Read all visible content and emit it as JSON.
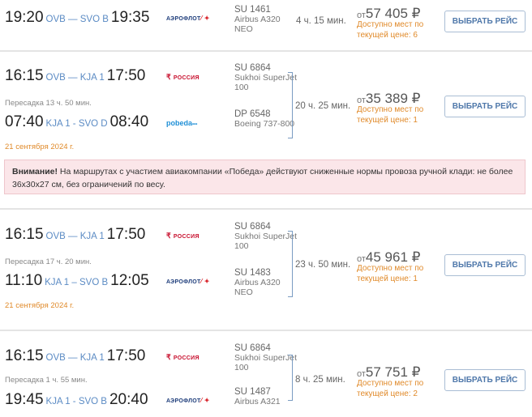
{
  "button_label": "ВЫБРАТЬ РЕЙС",
  "price_prefix": "от",
  "currency": "₽",
  "available_label_line1": "Доступно мест по",
  "available_label_line2": "текущей цене:",
  "colors": {
    "route": "#5b8bc4",
    "accent_orange": "#e08a2a",
    "button_text": "#4f78aa",
    "alert_bg": "#fbe6e9"
  },
  "alert": {
    "title": "Внимание!",
    "text": " На маршрутах с участием авиакомпании «Победа» действуют сниженные нормы провоза ручной клади: не более 36x30x27 см, без ограничений по весу."
  },
  "cards": [
    {
      "segments": [
        {
          "dep": "19:20",
          "route": "OVB — SVO B",
          "arr": "19:35",
          "airline": "aeroflot",
          "logo": "АЭРОФЛОТ",
          "code": "SU 1461",
          "aircraft": [
            "Airbus A320",
            "NEO"
          ]
        }
      ],
      "duration": "4 ч. 15 мин.",
      "price": "57 405",
      "seats": "6"
    },
    {
      "segments": [
        {
          "dep": "16:15",
          "route": "OVB — KJA 1",
          "arr": "17:50",
          "airline": "rossiya",
          "logo": "РОССИЯ",
          "code": "SU 6864",
          "aircraft": [
            "Sukhoi SuperJet",
            "100"
          ]
        },
        {
          "dep": "07:40",
          "route": "KJA 1 - SVO D",
          "arr": "08:40",
          "airline": "pobeda",
          "logo": "pobeda",
          "code": "DP 6548",
          "aircraft": [
            "Boeing 737-800"
          ]
        }
      ],
      "transfer": "Пересадка 13 ч. 50 мин.",
      "date": "21 сентября 2024 г.",
      "duration": "20 ч. 25 мин.",
      "price": "35 389",
      "seats": "1"
    },
    {
      "segments": [
        {
          "dep": "16:15",
          "route": "OVB — KJA 1",
          "arr": "17:50",
          "airline": "rossiya",
          "logo": "РОССИЯ",
          "code": "SU 6864",
          "aircraft": [
            "Sukhoi SuperJet",
            "100"
          ]
        },
        {
          "dep": "11:10",
          "route": "KJA 1 – SVO B",
          "arr": "12:05",
          "airline": "aeroflot",
          "logo": "АЭРОФЛОТ",
          "code": "SU 1483",
          "aircraft": [
            "Airbus A320",
            "NEO"
          ]
        }
      ],
      "transfer": "Пересадка 17 ч. 20 мин.",
      "date": "21 сентября 2024 г.",
      "duration": "23 ч. 50 мин.",
      "price": "45 961",
      "seats": "1"
    },
    {
      "segments": [
        {
          "dep": "16:15",
          "route": "OVB — KJA 1",
          "arr": "17:50",
          "airline": "rossiya",
          "logo": "РОССИЯ",
          "code": "SU 6864",
          "aircraft": [
            "Sukhoi SuperJet",
            "100"
          ]
        },
        {
          "dep": "19:45",
          "route": "KJA 1 - SVO B",
          "arr": "20:40",
          "airline": "aeroflot",
          "logo": "АЭРОФЛОТ",
          "code": "SU 1487",
          "aircraft": [
            "Airbus A321"
          ]
        }
      ],
      "transfer": "Пересадка 1 ч. 55 мин.",
      "duration": "8 ч. 25 мин.",
      "price": "57 751",
      "seats": "2"
    }
  ]
}
